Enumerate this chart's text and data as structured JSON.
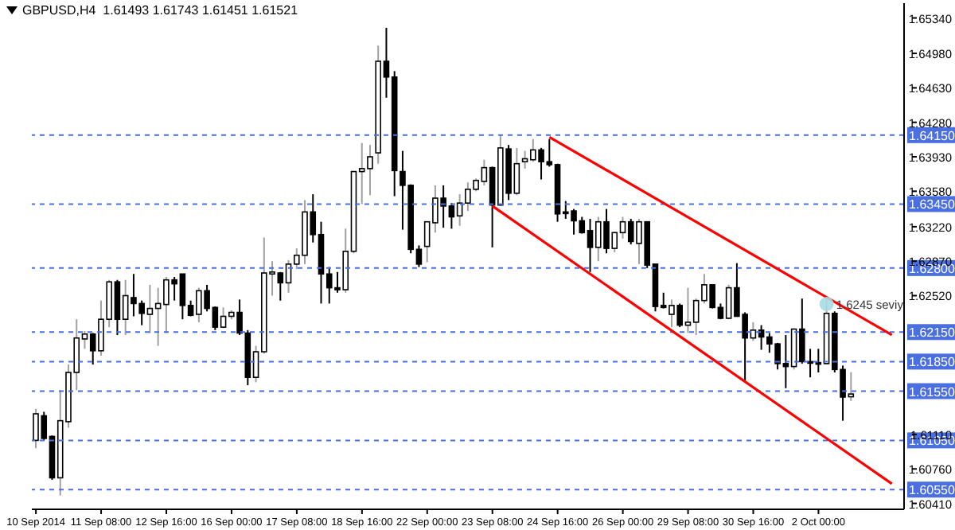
{
  "chart_data": {
    "type": "candlestick",
    "title": "GBPUSD,H4  1.61493 1.61743 1.61451 1.61521",
    "categories": [
      "10 Sep 2014",
      null,
      null,
      null,
      null,
      null,
      null,
      null,
      "11 Sep 08:00",
      null,
      null,
      null,
      null,
      null,
      null,
      null,
      "12 Sep 16:00",
      null,
      null,
      null,
      null,
      null,
      null,
      null,
      "16 Sep 00:00",
      null,
      null,
      null,
      null,
      null,
      null,
      null,
      "17 Sep 08:00",
      null,
      null,
      null,
      null,
      null,
      null,
      null,
      "18 Sep 16:00",
      null,
      null,
      null,
      null,
      null,
      null,
      null,
      "22 Sep 00:00",
      null,
      null,
      null,
      null,
      null,
      null,
      null,
      "23 Sep 08:00",
      null,
      null,
      null,
      null,
      null,
      null,
      null,
      "24 Sep 16:00",
      null,
      null,
      null,
      null,
      null,
      null,
      null,
      "26 Sep 00:00",
      null,
      null,
      null,
      null,
      null,
      null,
      null,
      "29 Sep 08:00",
      null,
      null,
      null,
      null,
      null,
      null,
      null,
      "30 Sep 16:00",
      null,
      null,
      null,
      null,
      null,
      null,
      null,
      "2 Oct 00:00",
      null,
      null,
      null,
      null,
      null,
      null,
      null,
      null,
      null,
      null
    ],
    "ohlc": [
      [
        1.6105,
        1.6137,
        1.6097,
        1.6132
      ],
      [
        1.613,
        1.6134,
        1.6105,
        1.6107
      ],
      [
        1.6109,
        1.611,
        1.6065,
        1.6067
      ],
      [
        1.6067,
        1.6156,
        1.6049,
        1.6125
      ],
      [
        1.6124,
        1.6182,
        1.6118,
        1.6174
      ],
      [
        1.6174,
        1.6228,
        1.6156,
        1.6209
      ],
      [
        1.6208,
        1.6216,
        1.6198,
        1.6213
      ],
      [
        1.6213,
        1.6214,
        1.6182,
        1.6196
      ],
      [
        1.6196,
        1.6247,
        1.6191,
        1.6228
      ],
      [
        1.6228,
        1.6268,
        1.622,
        1.6266
      ],
      [
        1.6266,
        1.6268,
        1.6212,
        1.6228
      ],
      [
        1.6228,
        1.6268,
        1.6212,
        1.6252
      ],
      [
        1.625,
        1.6274,
        1.6231,
        1.6244
      ],
      [
        1.6244,
        1.6247,
        1.6222,
        1.6234
      ],
      [
        1.6233,
        1.6263,
        1.6214,
        1.6239
      ],
      [
        1.6239,
        1.626,
        1.6201,
        1.6244
      ],
      [
        1.6243,
        1.6271,
        1.6214,
        1.6268
      ],
      [
        1.6268,
        1.6271,
        1.6247,
        1.6264
      ],
      [
        1.6274,
        1.6274,
        1.6228,
        1.6242
      ],
      [
        1.6242,
        1.6247,
        1.6231,
        1.6232
      ],
      [
        1.6233,
        1.626,
        1.6225,
        1.6257
      ],
      [
        1.6257,
        1.6263,
        1.6236,
        1.6239
      ],
      [
        1.624,
        1.6241,
        1.6217,
        1.622
      ],
      [
        1.622,
        1.624,
        1.6219,
        1.6231
      ],
      [
        1.6231,
        1.6237,
        1.6228,
        1.6235
      ],
      [
        1.6235,
        1.6248,
        1.6212,
        1.6214
      ],
      [
        1.6214,
        1.6217,
        1.6161,
        1.6169
      ],
      [
        1.6169,
        1.6201,
        1.6164,
        1.6195
      ],
      [
        1.6195,
        1.6311,
        1.6193,
        1.6275
      ],
      [
        1.6274,
        1.6287,
        1.6252,
        1.6276
      ],
      [
        1.6275,
        1.6276,
        1.6247,
        1.6265
      ],
      [
        1.6265,
        1.6288,
        1.6255,
        1.6284
      ],
      [
        1.6284,
        1.63,
        1.6279,
        1.6293
      ],
      [
        1.6293,
        1.6349,
        1.6284,
        1.6337
      ],
      [
        1.6337,
        1.6355,
        1.6306,
        1.6314
      ],
      [
        1.6314,
        1.6327,
        1.6244,
        1.6274
      ],
      [
        1.6274,
        1.6281,
        1.6244,
        1.626
      ],
      [
        1.626,
        1.6276,
        1.6255,
        1.6258
      ],
      [
        1.6258,
        1.632,
        1.6255,
        1.6297
      ],
      [
        1.6297,
        1.6378,
        1.6295,
        1.6378
      ],
      [
        1.6378,
        1.6407,
        1.6345,
        1.6381
      ],
      [
        1.6381,
        1.6405,
        1.6354,
        1.6393
      ],
      [
        1.6397,
        1.6506,
        1.6386,
        1.649
      ],
      [
        1.649,
        1.6524,
        1.6453,
        1.6474
      ],
      [
        1.6474,
        1.648,
        1.6353,
        1.6379
      ],
      [
        1.6378,
        1.6399,
        1.6319,
        1.6364
      ],
      [
        1.6364,
        1.6365,
        1.6295,
        1.6299
      ],
      [
        1.6299,
        1.6303,
        1.6281,
        1.6284
      ],
      [
        1.6302,
        1.6327,
        1.6286,
        1.6327
      ],
      [
        1.6326,
        1.6364,
        1.6316,
        1.6351
      ],
      [
        1.6351,
        1.6364,
        1.6321,
        1.6343
      ],
      [
        1.6343,
        1.6346,
        1.632,
        1.6332
      ],
      [
        1.6333,
        1.6355,
        1.6323,
        1.6346
      ],
      [
        1.6346,
        1.6367,
        1.6338,
        1.636
      ],
      [
        1.636,
        1.6371,
        1.6358,
        1.6369
      ],
      [
        1.6368,
        1.639,
        1.6364,
        1.6382
      ],
      [
        1.6382,
        1.6383,
        1.6301,
        1.6344
      ],
      [
        1.6344,
        1.6415,
        1.6343,
        1.6402
      ],
      [
        1.6401,
        1.6405,
        1.6349,
        1.6356
      ],
      [
        1.6356,
        1.6402,
        1.6354,
        1.6386
      ],
      [
        1.6388,
        1.6399,
        1.6381,
        1.6391
      ],
      [
        1.639,
        1.6411,
        1.6388,
        1.64
      ],
      [
        1.64,
        1.6402,
        1.637,
        1.6388
      ],
      [
        1.6388,
        1.6411,
        1.6383,
        1.6385
      ],
      [
        1.6385,
        1.6386,
        1.6327,
        1.6335
      ],
      [
        1.6337,
        1.6348,
        1.633,
        1.6336
      ],
      [
        1.6338,
        1.634,
        1.6314,
        1.6328
      ],
      [
        1.6328,
        1.6332,
        1.6315,
        1.6316
      ],
      [
        1.6318,
        1.633,
        1.6276,
        1.6301
      ],
      [
        1.6301,
        1.6332,
        1.6287,
        1.6327
      ],
      [
        1.6327,
        1.634,
        1.6295,
        1.63
      ],
      [
        1.63,
        1.6317,
        1.6296,
        1.6316
      ],
      [
        1.6316,
        1.6332,
        1.631,
        1.6327
      ],
      [
        1.6327,
        1.633,
        1.6304,
        1.6307
      ],
      [
        1.6305,
        1.633,
        1.6284,
        1.6327
      ],
      [
        1.6327,
        1.6327,
        1.628,
        1.6283
      ],
      [
        1.6284,
        1.6284,
        1.6236,
        1.6241
      ],
      [
        1.6242,
        1.6255,
        1.6239,
        1.624
      ],
      [
        1.6233,
        1.6248,
        1.622,
        1.6242
      ],
      [
        1.6242,
        1.6244,
        1.622,
        1.6222
      ],
      [
        1.6222,
        1.626,
        1.6214,
        1.6225
      ],
      [
        1.6225,
        1.6249,
        1.6212,
        1.6247
      ],
      [
        1.6247,
        1.6274,
        1.6244,
        1.6263
      ],
      [
        1.6263,
        1.6263,
        1.6239,
        1.624
      ],
      [
        1.624,
        1.6244,
        1.6228,
        1.6229
      ],
      [
        1.6229,
        1.6263,
        1.6228,
        1.626
      ],
      [
        1.626,
        1.6285,
        1.6231,
        1.6231
      ],
      [
        1.6233,
        1.6235,
        1.6166,
        1.6209
      ],
      [
        1.6209,
        1.6225,
        1.6206,
        1.6217
      ],
      [
        1.6217,
        1.6222,
        1.6197,
        1.621
      ],
      [
        1.621,
        1.6214,
        1.6194,
        1.6203
      ],
      [
        1.6203,
        1.6204,
        1.6177,
        1.6183
      ],
      [
        1.6183,
        1.6212,
        1.6158,
        1.618
      ],
      [
        1.618,
        1.6219,
        1.6177,
        1.6218
      ],
      [
        1.6218,
        1.6249,
        1.6183,
        1.6185
      ],
      [
        1.6185,
        1.6198,
        1.6169,
        1.6184
      ],
      [
        1.6184,
        1.6198,
        1.6174,
        1.6183
      ],
      [
        1.6183,
        1.6251,
        1.6182,
        1.6234
      ],
      [
        1.6234,
        1.6236,
        1.6174,
        1.6177
      ],
      [
        1.6177,
        1.6181,
        1.6125,
        1.6149
      ],
      [
        1.61493,
        1.61743,
        1.61451,
        1.61521
      ],
      null,
      null,
      null,
      null,
      null,
      null
    ],
    "series": [
      {
        "type": "line",
        "color": "#ff0000",
        "values": [
          null,
          null,
          null,
          null,
          null,
          null,
          null,
          null,
          null,
          null,
          null,
          null,
          null,
          null,
          null,
          null,
          null,
          null,
          null,
          null,
          null,
          null,
          null,
          null,
          null,
          null,
          null,
          null,
          null,
          null,
          null,
          null,
          null,
          null,
          null,
          null,
          null,
          null,
          null,
          null,
          null,
          null,
          null,
          null,
          null,
          null,
          null,
          null,
          null,
          null,
          null,
          null,
          null,
          null,
          null,
          null,
          1.6343,
          null,
          null,
          null,
          null,
          null,
          null,
          null,
          null,
          null,
          null,
          null,
          null,
          null,
          null,
          null,
          null,
          null,
          null,
          null,
          null,
          null,
          null,
          null,
          null,
          null,
          null,
          null,
          null,
          null,
          null,
          null,
          null,
          null,
          null,
          null,
          null,
          null,
          null,
          null,
          null,
          null,
          null,
          null,
          null,
          null,
          null,
          null,
          null,
          1.6061,
          null
        ]
      },
      {
        "type": "line",
        "color": "#ff0000",
        "values": [
          null,
          null,
          null,
          null,
          null,
          null,
          null,
          null,
          null,
          null,
          null,
          null,
          null,
          null,
          null,
          null,
          null,
          null,
          null,
          null,
          null,
          null,
          null,
          null,
          null,
          null,
          null,
          null,
          null,
          null,
          null,
          null,
          null,
          null,
          null,
          null,
          null,
          null,
          null,
          null,
          null,
          null,
          null,
          null,
          null,
          null,
          null,
          null,
          null,
          null,
          null,
          null,
          null,
          null,
          null,
          null,
          null,
          null,
          null,
          null,
          null,
          null,
          null,
          1.6413,
          null,
          null,
          null,
          null,
          null,
          null,
          null,
          null,
          null,
          null,
          null,
          null,
          null,
          null,
          null,
          null,
          null,
          null,
          null,
          null,
          null,
          null,
          null,
          null,
          null,
          null,
          null,
          null,
          null,
          null,
          null,
          null,
          null,
          null,
          null,
          null,
          null,
          null,
          null,
          null,
          null,
          1.6212,
          null
        ]
      }
    ],
    "ylim": [
      1.6035,
      1.6549
    ],
    "yticks": [
      {
        "value": 1.6534,
        "label": "1.65340"
      },
      {
        "value": 1.6498,
        "label": "1.64980"
      },
      {
        "value": 1.6463,
        "label": "1.64630"
      },
      {
        "value": 1.6428,
        "label": "1.64280"
      },
      {
        "value": 1.6393,
        "label": "1.63930"
      },
      {
        "value": 1.6358,
        "label": "1.63580"
      },
      {
        "value": 1.6322,
        "label": "1.63220"
      },
      {
        "value": 1.6287,
        "label": "1.62870"
      },
      {
        "value": 1.6252,
        "label": "1.62520"
      },
      {
        "value": 1.6111,
        "label": "1.61110"
      },
      {
        "value": 1.6076,
        "label": "1.60760"
      },
      {
        "value": 1.6041,
        "label": "1.60410"
      }
    ],
    "ref_lines": [
      {
        "axis": "y",
        "value": 1.6415,
        "label": "1.64150",
        "color": "#4a6fe0",
        "line_style": "dashed"
      },
      {
        "axis": "y",
        "value": 1.6345,
        "label": "1.63450",
        "color": "#4a6fe0",
        "line_style": "dashed"
      },
      {
        "axis": "y",
        "value": 1.628,
        "label": "1.62800",
        "color": "#4a6fe0",
        "line_style": "dashed"
      },
      {
        "axis": "y",
        "value": 1.6215,
        "label": "1.62150",
        "color": "#4a6fe0",
        "line_style": "dashed"
      },
      {
        "axis": "y",
        "value": 1.6185,
        "label": "1.61850",
        "color": "#4a6fe0",
        "line_style": "dashed"
      },
      {
        "axis": "y",
        "value": 1.6155,
        "label": "1.61550",
        "color": "#4a6fe0",
        "line_style": "dashed"
      },
      {
        "axis": "y",
        "value": 1.6105,
        "label": "1.61050",
        "color": "#4a6fe0",
        "line_style": "dashed"
      },
      {
        "axis": "y",
        "value": 1.6055,
        "label": "1.60550",
        "color": "#4a6fe0",
        "line_style": "dashed"
      }
    ],
    "annotations": [
      "1.6245 seviy"
    ]
  }
}
